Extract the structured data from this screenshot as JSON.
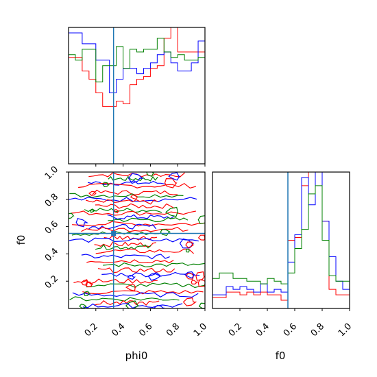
{
  "chart_data": {
    "type": "corner",
    "parameters": [
      "phi0",
      "f0"
    ],
    "truth": {
      "phi0": 0.33,
      "f0": 0.55
    },
    "truth_color": "#1f77b4",
    "series": [
      {
        "color": "#ff0000"
      },
      {
        "color": "#0000ff"
      },
      {
        "color": "#008000"
      }
    ],
    "ticks": [
      "0.2",
      "0.4",
      "0.6",
      "0.8",
      "1.0"
    ],
    "xlim": [
      0,
      1
    ],
    "ylim": [
      0,
      1
    ],
    "hist_phi0": {
      "bins": 20,
      "counts_0_1": [
        [
          0.78,
          0.78,
          0.68,
          0.62,
          0.52,
          0.42,
          0.42,
          0.46,
          0.44,
          0.58,
          0.62,
          0.64,
          0.7,
          0.72,
          0.92,
          1.05,
          0.82,
          0.82,
          0.82,
          0.82
        ],
        [
          0.96,
          0.96,
          0.88,
          0.88,
          0.76,
          0.76,
          0.52,
          0.62,
          0.7,
          0.7,
          0.66,
          0.7,
          0.74,
          0.8,
          0.82,
          0.74,
          0.68,
          0.68,
          0.74,
          0.9
        ],
        [
          0.8,
          0.76,
          0.84,
          0.84,
          0.6,
          0.72,
          0.72,
          0.86,
          0.7,
          0.84,
          0.82,
          0.84,
          0.84,
          0.92,
          0.82,
          0.78,
          0.8,
          0.76,
          0.76,
          0.78
        ]
      ]
    },
    "hist_f0": {
      "bins": 20,
      "counts_0_1": [
        [
          0.08,
          0.08,
          0.12,
          0.12,
          0.1,
          0.12,
          0.1,
          0.12,
          0.1,
          0.1,
          0.06,
          0.5,
          0.52,
          0.9,
          1.05,
          1.05,
          0.64,
          0.14,
          0.1,
          0.1
        ],
        [
          0.1,
          0.1,
          0.16,
          0.14,
          0.16,
          0.14,
          0.12,
          0.18,
          0.12,
          0.14,
          0.12,
          0.34,
          0.54,
          0.96,
          0.76,
          1.05,
          0.64,
          0.38,
          0.2,
          0.14
        ],
        [
          0.22,
          0.26,
          0.26,
          0.22,
          0.22,
          0.2,
          0.2,
          0.18,
          0.22,
          0.2,
          0.18,
          0.26,
          0.44,
          0.58,
          0.84,
          0.9,
          0.5,
          0.24,
          0.2,
          0.2
        ]
      ]
    }
  }
}
